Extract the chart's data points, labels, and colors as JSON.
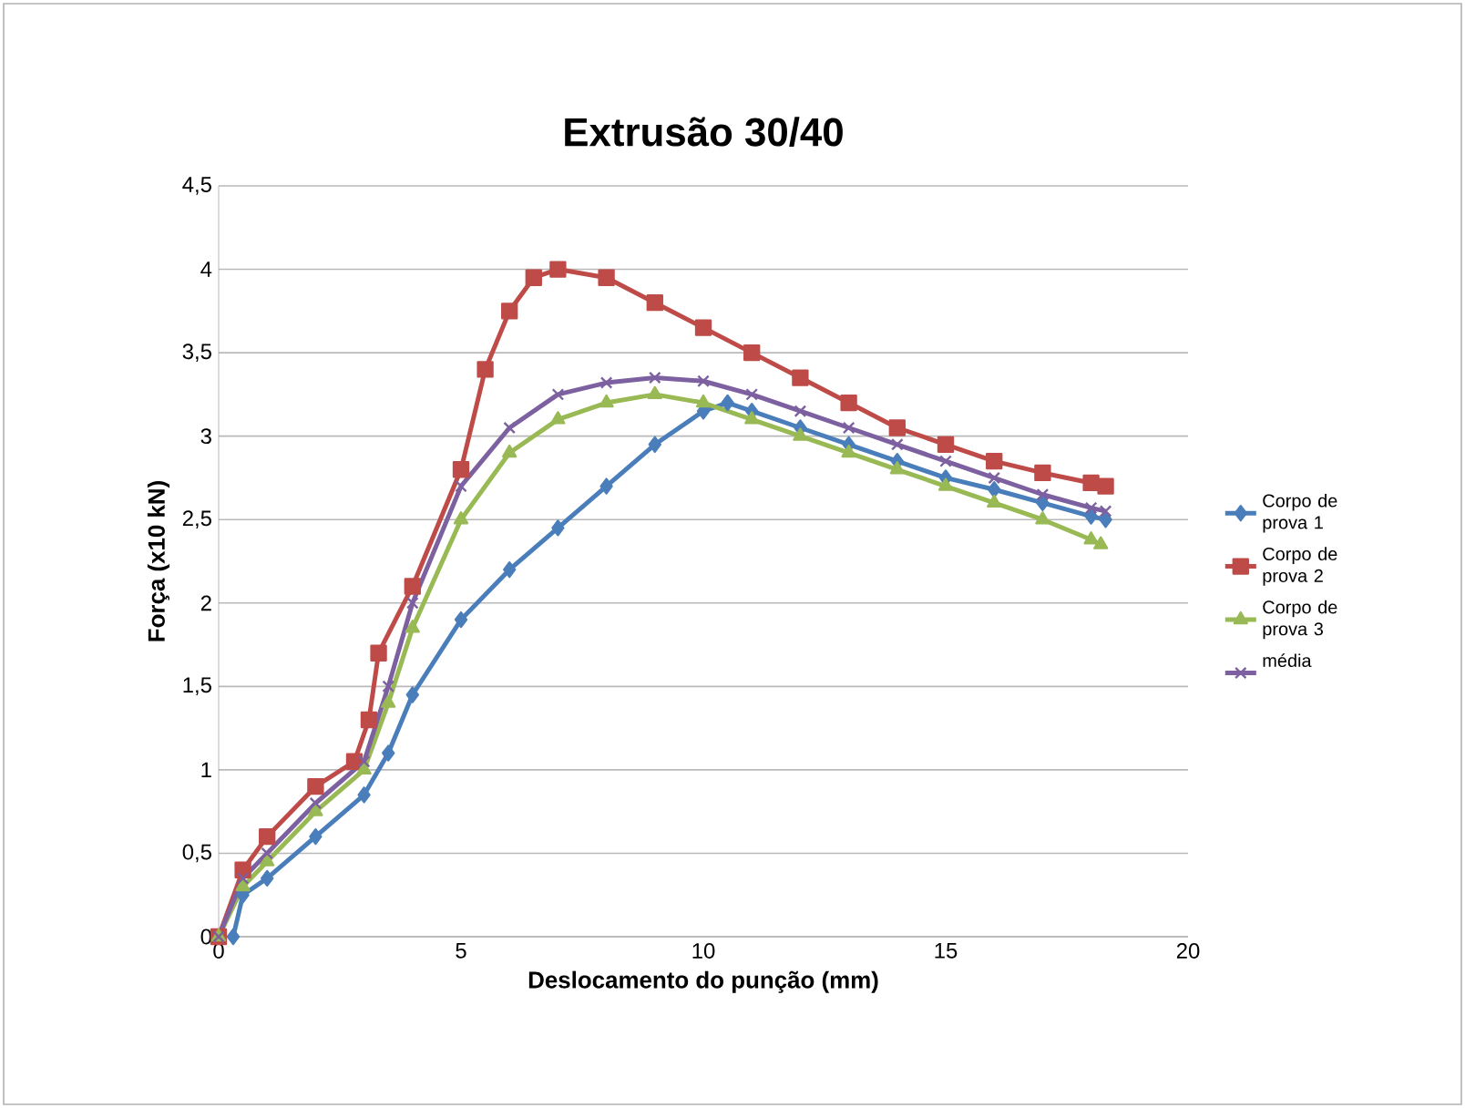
{
  "chart_data": {
    "type": "line",
    "title": "Extrusão 30/40",
    "xlabel": "Deslocamento do punção (mm)",
    "ylabel": "Força (x10 kN)",
    "xlim": [
      0,
      20
    ],
    "xticks": [
      0,
      5,
      10,
      15,
      20
    ],
    "ylim": [
      0,
      4.5
    ],
    "yticks": [
      0,
      {
        "value": 0.5,
        "label": "0,5"
      },
      1,
      {
        "value": 1.5,
        "label": "1,5"
      },
      2,
      {
        "value": 2.5,
        "label": "2,5"
      },
      3,
      {
        "value": 3.5,
        "label": "3,5"
      },
      4,
      {
        "value": 4.5,
        "label": "4,5"
      }
    ],
    "grid": "y",
    "legend": "right",
    "series": [
      {
        "name": "Corpo de prova 1",
        "color": "#4a7ebb",
        "marker": "diamond",
        "x": [
          0.3,
          0.5,
          1,
          2,
          3,
          3.5,
          4,
          5,
          6,
          7,
          8,
          9,
          10,
          10.5,
          11,
          12,
          13,
          14,
          15,
          16,
          17,
          18,
          18.3
        ],
        "values": [
          0,
          0.25,
          0.35,
          0.6,
          0.85,
          1.1,
          1.45,
          1.9,
          2.2,
          2.45,
          2.7,
          2.95,
          3.15,
          3.2,
          3.15,
          3.05,
          2.95,
          2.85,
          2.75,
          2.68,
          2.6,
          2.52,
          2.5
        ]
      },
      {
        "name": "Corpo de prova 2",
        "color": "#be4b48",
        "marker": "square",
        "x": [
          0,
          0.5,
          1,
          2,
          2.8,
          3.1,
          3.3,
          4,
          5,
          5.5,
          6,
          6.5,
          7,
          8,
          9,
          10,
          11,
          12,
          13,
          14,
          15,
          16,
          17,
          18,
          18.3
        ],
        "values": [
          0,
          0.4,
          0.6,
          0.9,
          1.05,
          1.3,
          1.7,
          2.1,
          2.8,
          3.4,
          3.75,
          3.95,
          4,
          3.95,
          3.8,
          3.65,
          3.5,
          3.35,
          3.2,
          3.05,
          2.95,
          2.85,
          2.78,
          2.72,
          2.7
        ]
      },
      {
        "name": "Corpo de prova 3",
        "color": "#98b954",
        "marker": "triangle",
        "x": [
          0,
          0.5,
          1,
          2,
          3,
          3.5,
          4,
          5,
          6,
          7,
          8,
          9,
          10,
          11,
          12,
          13,
          14,
          15,
          16,
          17,
          18,
          18.2
        ],
        "values": [
          0,
          0.3,
          0.45,
          0.75,
          1,
          1.4,
          1.85,
          2.5,
          2.9,
          3.1,
          3.2,
          3.25,
          3.2,
          3.1,
          3,
          2.9,
          2.8,
          2.7,
          2.6,
          2.5,
          2.38,
          2.35
        ]
      },
      {
        "name": "média",
        "color": "#7d60a0",
        "marker": "cross",
        "x": [
          0,
          0.5,
          1,
          2,
          3,
          3.5,
          4,
          5,
          6,
          7,
          8,
          9,
          10,
          11,
          12,
          13,
          14,
          15,
          16,
          17,
          18,
          18.3
        ],
        "values": [
          0,
          0.35,
          0.5,
          0.8,
          1.05,
          1.5,
          2,
          2.7,
          3.05,
          3.25,
          3.32,
          3.35,
          3.33,
          3.25,
          3.15,
          3.05,
          2.95,
          2.85,
          2.75,
          2.65,
          2.57,
          2.55
        ]
      }
    ]
  }
}
